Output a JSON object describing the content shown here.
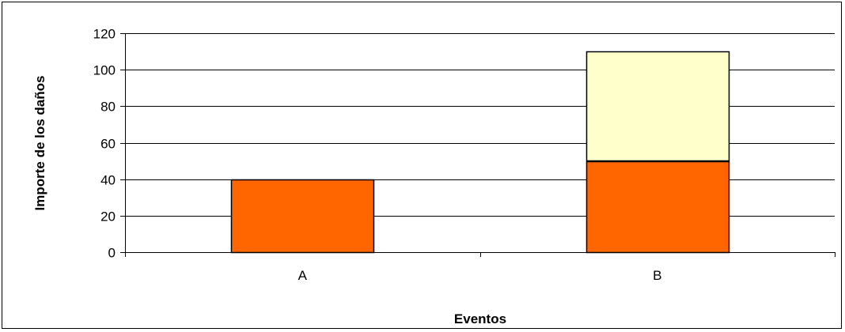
{
  "chart_data": {
    "type": "bar",
    "stacked": true,
    "categories": [
      "A",
      "B"
    ],
    "series": [
      {
        "values": [
          40,
          50
        ],
        "color": "#FF6600"
      },
      {
        "values": [
          0,
          60
        ],
        "color": "#FFFFCC"
      }
    ],
    "ylabel": "Importe de los daños",
    "xlabel": "Eventos",
    "ylim": [
      0,
      120
    ],
    "yticks": [
      0,
      20,
      40,
      60,
      80,
      100,
      120
    ],
    "grid": true,
    "legend": "none"
  }
}
